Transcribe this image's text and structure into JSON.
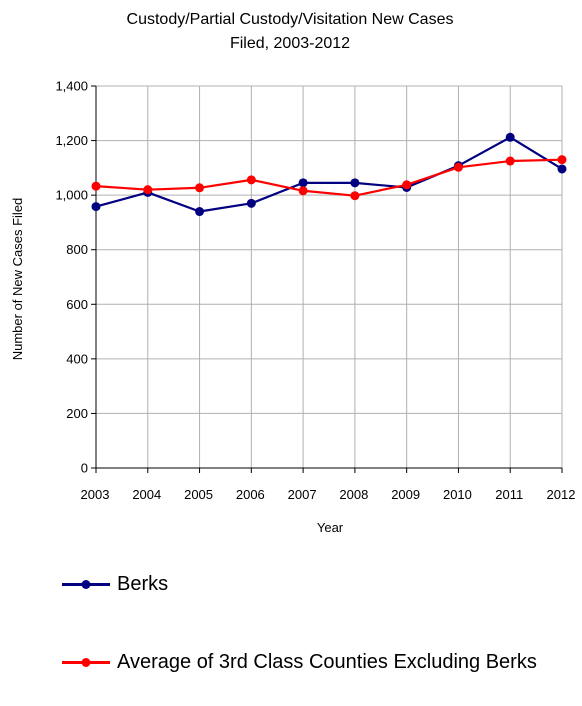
{
  "chart_data": {
    "type": "line",
    "title_lines": [
      "Custody/Partial Custody/Visitation New Cases",
      "Filed, 2003-2012"
    ],
    "xlabel": "Year",
    "ylabel": "Number of New Cases Filed",
    "x": [
      "2003",
      "2004",
      "2005",
      "2006",
      "2007",
      "2008",
      "2009",
      "2010",
      "2011",
      "2012"
    ],
    "ylim": [
      0,
      1400
    ],
    "yticks": [
      0,
      200,
      400,
      600,
      800,
      1000,
      1200,
      1400
    ],
    "ytick_labels": [
      "0",
      "200",
      "400",
      "600",
      "800",
      "1,000",
      "1,200",
      "1,400"
    ],
    "grid": true,
    "legend_position": "bottom",
    "series": [
      {
        "name": "Berks",
        "color": "#000080",
        "values": [
          958,
          1010,
          940,
          970,
          1045,
          1045,
          1028,
          1108,
          1212,
          1096
        ]
      },
      {
        "name": "Average of 3rd Class Counties Excluding Berks",
        "color": "#ff0000",
        "values": [
          1033,
          1020,
          1027,
          1056,
          1016,
          998,
          1038,
          1102,
          1125,
          1130
        ]
      }
    ]
  }
}
